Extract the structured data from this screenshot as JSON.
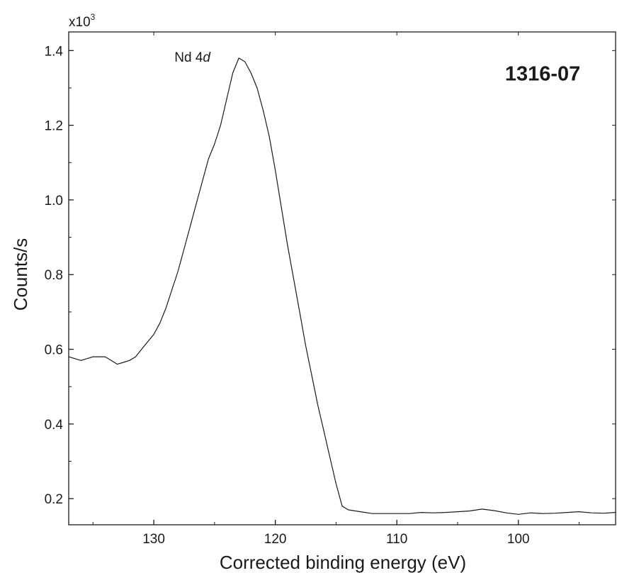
{
  "chart_data": {
    "type": "line",
    "title": "",
    "xlabel": "Corrected binding energy (eV)",
    "ylabel": "Counts/s",
    "y_multiplier_label": "x10",
    "y_multiplier_exp": "3",
    "xlim": [
      137,
      92
    ],
    "x_reversed": true,
    "ylim": [
      0.13,
      1.45
    ],
    "x_ticks": [
      130,
      120,
      110,
      100
    ],
    "y_ticks": [
      0.2,
      0.4,
      0.6,
      0.8,
      1.0,
      1.2,
      1.4
    ],
    "y_tick_labels": [
      "0.2",
      "0.4",
      "0.6",
      "0.8",
      "1.0",
      "1.2",
      "1.4"
    ],
    "grid": false,
    "annotations": [
      {
        "text_main": "Nd 4",
        "text_italic": "d",
        "x": 128.3,
        "y": 1.37
      },
      {
        "text": "1316-07",
        "style": "bold",
        "x": 98.0,
        "y": 1.32
      }
    ],
    "series": [
      {
        "x": [
          137,
          136,
          135,
          134,
          133.5,
          133,
          132.5,
          132,
          131.5,
          131,
          130.5,
          130,
          129.5,
          129,
          128.5,
          128,
          127.5,
          127,
          126.5,
          126,
          125.5,
          125,
          124.5,
          124,
          123.5,
          123,
          122.5,
          122,
          121.5,
          121,
          120.5,
          120,
          119.5,
          119,
          118.5,
          118,
          117.5,
          117,
          116.5,
          116,
          115.5,
          115,
          114.5,
          114,
          113,
          112,
          111,
          110,
          109,
          108,
          107,
          106,
          105,
          104,
          103,
          102,
          101,
          100,
          99,
          98,
          97,
          96,
          95,
          94,
          93,
          92
        ],
        "y": [
          0.58,
          0.57,
          0.58,
          0.58,
          0.57,
          0.56,
          0.565,
          0.57,
          0.58,
          0.6,
          0.62,
          0.64,
          0.67,
          0.71,
          0.76,
          0.81,
          0.87,
          0.93,
          0.99,
          1.05,
          1.11,
          1.15,
          1.2,
          1.27,
          1.34,
          1.38,
          1.37,
          1.34,
          1.3,
          1.24,
          1.17,
          1.08,
          0.98,
          0.88,
          0.79,
          0.7,
          0.61,
          0.53,
          0.45,
          0.38,
          0.31,
          0.24,
          0.18,
          0.17,
          0.165,
          0.16,
          0.16,
          0.16,
          0.16,
          0.163,
          0.162,
          0.163,
          0.165,
          0.167,
          0.172,
          0.168,
          0.162,
          0.158,
          0.162,
          0.16,
          0.161,
          0.163,
          0.165,
          0.162,
          0.161,
          0.163
        ]
      }
    ]
  }
}
